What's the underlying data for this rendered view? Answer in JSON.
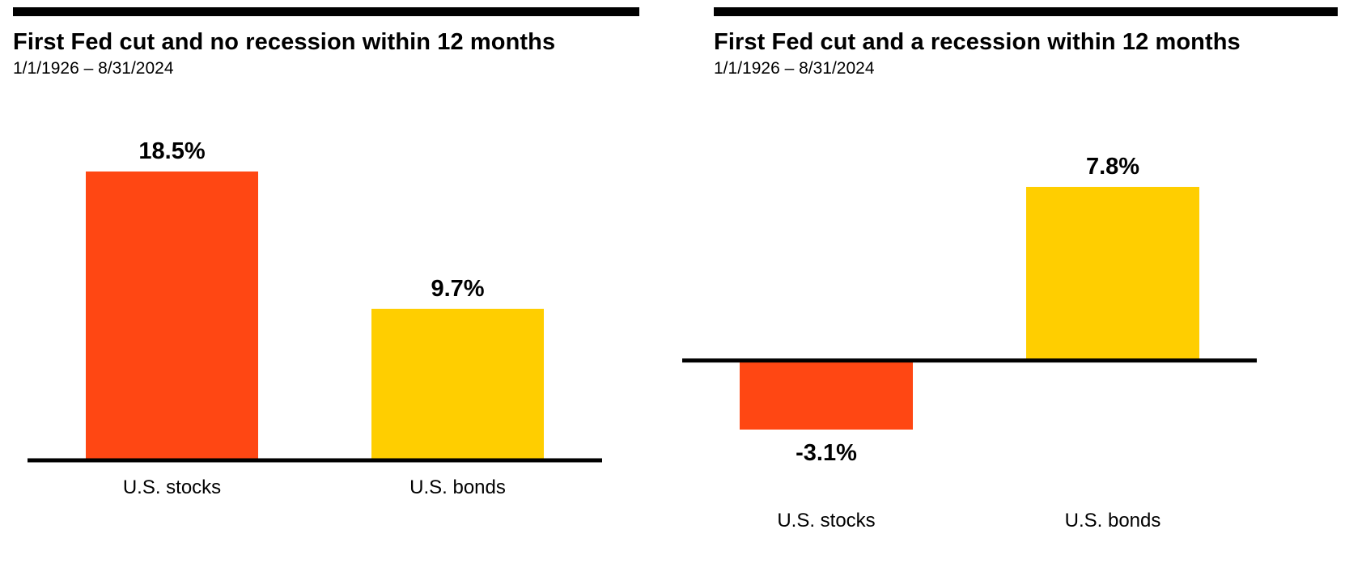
{
  "chart_data": [
    {
      "type": "bar",
      "title": "First Fed cut and no recession within 12 months",
      "subtitle": "1/1/1926 – 8/31/2024",
      "categories": [
        "U.S. stocks",
        "U.S. bonds"
      ],
      "values": [
        18.5,
        9.7
      ],
      "value_labels": [
        "18.5%",
        "9.7%"
      ],
      "colors": [
        "#FF4713",
        "#FFCE00"
      ],
      "ylim": [
        0,
        18.5
      ],
      "grid": false
    },
    {
      "type": "bar",
      "title": "First Fed cut and a recession within 12 months",
      "subtitle": "1/1/1926 – 8/31/2024",
      "categories": [
        "U.S. stocks",
        "U.S. bonds"
      ],
      "values": [
        -3.1,
        7.8
      ],
      "value_labels": [
        "-3.1%",
        "7.8%"
      ],
      "colors": [
        "#FF4713",
        "#FFCE00"
      ],
      "ylim": [
        -3.1,
        7.8
      ],
      "grid": false
    }
  ]
}
